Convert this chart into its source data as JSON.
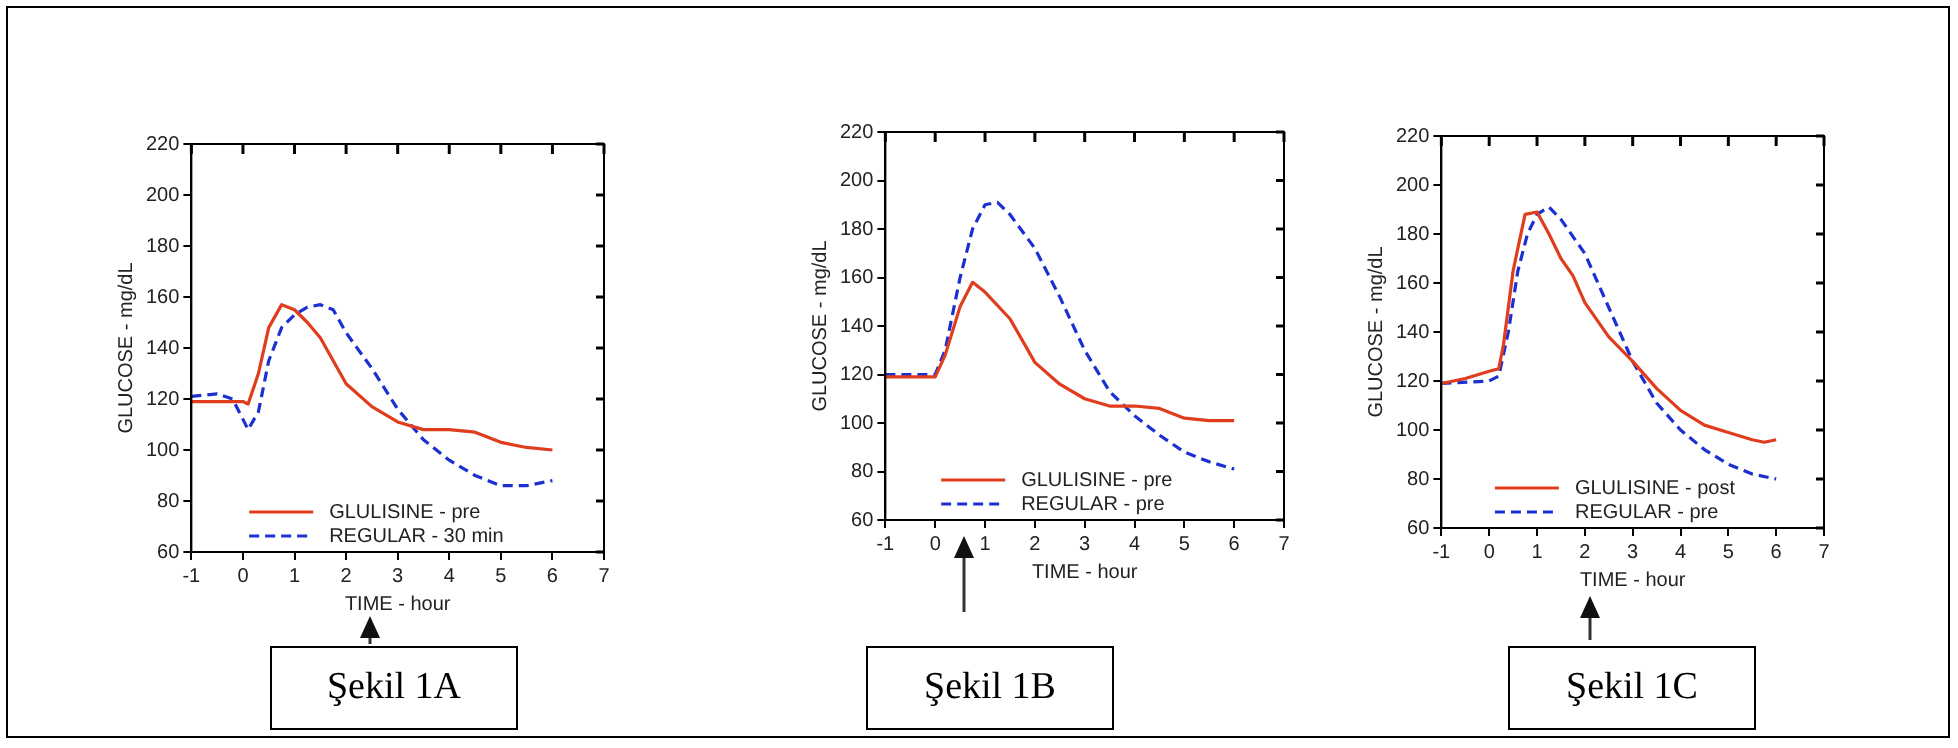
{
  "chart_data": [
    {
      "type": "line",
      "xlabel": "TIME - hour",
      "ylabel": "GLUCOSE - mg/dL",
      "xlim": [
        -1,
        7
      ],
      "xticks": [
        -1,
        0,
        1,
        2,
        3,
        4,
        5,
        6,
        7
      ],
      "ylim": [
        60,
        220
      ],
      "yticks": [
        60,
        80,
        100,
        120,
        140,
        160,
        180,
        200,
        220
      ],
      "grid": false,
      "legend": "bottom",
      "marker": "none",
      "annotations": [
        "Şekil 1A"
      ],
      "series": [
        {
          "name": "GLULISINE - pre",
          "color": "#e03c1e",
          "line_style": "solid",
          "x": [
            -1,
            0,
            0.1,
            0.3,
            0.5,
            0.75,
            1,
            1.25,
            1.5,
            1.75,
            2,
            2.5,
            3,
            3.5,
            4,
            4.5,
            5,
            5.5,
            6
          ],
          "values": [
            119,
            119,
            118,
            130,
            148,
            157,
            155,
            150,
            144,
            135,
            126,
            117,
            111,
            108,
            108,
            107,
            103,
            101,
            100
          ]
        },
        {
          "name": "REGULAR - 30 min",
          "color": "#1c2fd0",
          "line_style": "dashed",
          "x": [
            -1,
            -0.5,
            -0.2,
            0,
            0.1,
            0.3,
            0.5,
            0.75,
            1,
            1.25,
            1.5,
            1.75,
            2,
            2.5,
            3,
            3.5,
            4,
            4.5,
            5,
            5.5,
            6
          ],
          "values": [
            121,
            122,
            120,
            112,
            108,
            115,
            135,
            148,
            153,
            156,
            157,
            155,
            146,
            132,
            116,
            104,
            96,
            90,
            86,
            86,
            88
          ]
        }
      ]
    },
    {
      "type": "line",
      "xlabel": "TIME - hour",
      "ylabel": "GLUCOSE - mg/dL",
      "xlim": [
        -1,
        7
      ],
      "xticks": [
        -1,
        0,
        1,
        2,
        3,
        4,
        5,
        6,
        7
      ],
      "ylim": [
        60,
        220
      ],
      "yticks": [
        60,
        80,
        100,
        120,
        140,
        160,
        180,
        200,
        220
      ],
      "grid": false,
      "legend": "bottom",
      "marker": "none",
      "annotations": [
        "Şekil 1B"
      ],
      "series": [
        {
          "name": "GLULISINE - pre",
          "color": "#e03c1e",
          "line_style": "solid",
          "x": [
            -1,
            0,
            0.2,
            0.5,
            0.75,
            1,
            1.5,
            2,
            2.5,
            3,
            3.5,
            4,
            4.5,
            5,
            5.5,
            6
          ],
          "values": [
            119,
            119,
            128,
            148,
            158,
            154,
            143,
            125,
            116,
            110,
            107,
            107,
            106,
            102,
            101,
            101
          ]
        },
        {
          "name": "REGULAR - pre",
          "color": "#1c2fd0",
          "line_style": "dashed",
          "x": [
            -1,
            0,
            0.2,
            0.5,
            0.75,
            1,
            1.25,
            1.5,
            2,
            2.5,
            3,
            3.5,
            4,
            4.5,
            5,
            5.5,
            6
          ],
          "values": [
            120,
            120,
            130,
            160,
            180,
            190,
            191,
            186,
            172,
            152,
            130,
            113,
            103,
            95,
            88,
            84,
            81
          ]
        }
      ]
    },
    {
      "type": "line",
      "xlabel": "TIME - hour",
      "ylabel": "GLUCOSE - mg/dL",
      "xlim": [
        -1,
        7
      ],
      "xticks": [
        -1,
        0,
        1,
        2,
        3,
        4,
        5,
        6,
        7
      ],
      "ylim": [
        60,
        220
      ],
      "yticks": [
        60,
        80,
        100,
        120,
        140,
        160,
        180,
        200,
        220
      ],
      "grid": false,
      "legend": "bottom",
      "marker": "none",
      "annotations": [
        "Şekil 1C"
      ],
      "series": [
        {
          "name": "GLULISINE - post",
          "color": "#e03c1e",
          "line_style": "solid",
          "x": [
            -1,
            -0.5,
            0,
            0.2,
            0.3,
            0.5,
            0.75,
            1,
            1.25,
            1.5,
            1.75,
            2,
            2.5,
            3,
            3.5,
            4,
            4.5,
            5,
            5.5,
            5.75,
            6
          ],
          "values": [
            119,
            121,
            124,
            125,
            135,
            165,
            188,
            189,
            180,
            170,
            163,
            152,
            138,
            128,
            117,
            108,
            102,
            99,
            96,
            95,
            96
          ]
        },
        {
          "name": "REGULAR - pre",
          "color": "#1c2fd0",
          "line_style": "dashed",
          "x": [
            -1,
            0,
            0.2,
            0.4,
            0.6,
            0.8,
            1,
            1.25,
            1.5,
            2,
            2.5,
            3,
            3.5,
            4,
            4.5,
            5,
            5.5,
            6
          ],
          "values": [
            119,
            120,
            122,
            140,
            165,
            180,
            188,
            191,
            186,
            172,
            150,
            128,
            111,
            100,
            92,
            86,
            82,
            80
          ]
        }
      ]
    }
  ]
}
